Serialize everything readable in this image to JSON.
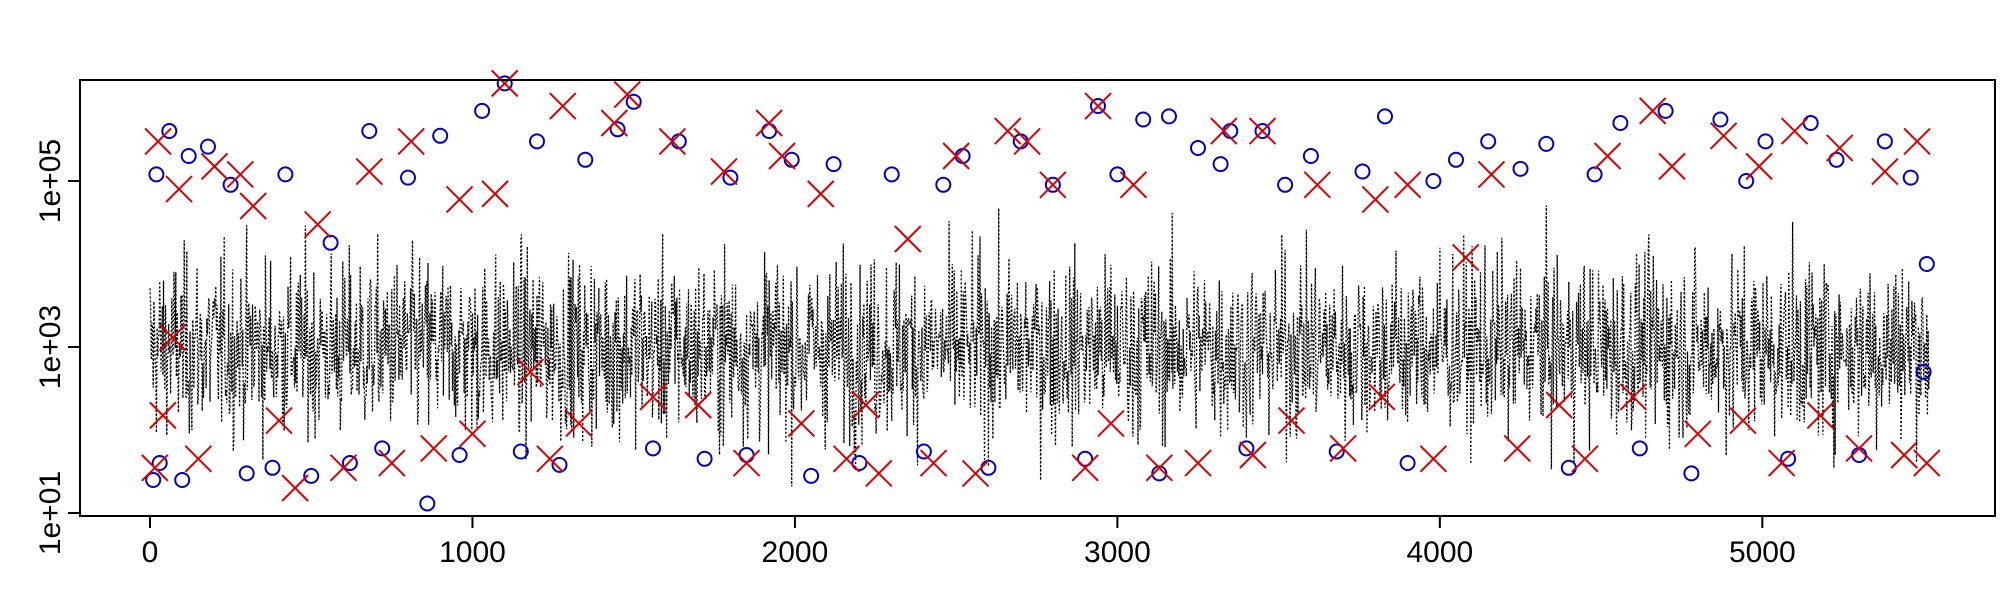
{
  "chart_data": {
    "type": "line",
    "title": "",
    "xlabel": "",
    "ylabel": "",
    "x_range": [
      0,
      5520
    ],
    "y_scale": "log10",
    "ylim": [
      10,
      1000000
    ],
    "x_ticks": [
      {
        "value": 0,
        "label": "0"
      },
      {
        "value": 1000,
        "label": "1000"
      },
      {
        "value": 2000,
        "label": "2000"
      },
      {
        "value": 3000,
        "label": "3000"
      },
      {
        "value": 4000,
        "label": "4000"
      },
      {
        "value": 5000,
        "label": "5000"
      }
    ],
    "y_ticks": [
      {
        "value": 10,
        "label": "1e+01"
      },
      {
        "value": 1000,
        "label": "1e+03"
      },
      {
        "value": 100000,
        "label": "1e+05"
      }
    ],
    "grid": false,
    "legend": "none",
    "series": [
      {
        "kind": "dotted-line",
        "color": "#000000",
        "n_points": 5520,
        "typical_range": [
          100,
          10000
        ],
        "extreme_range": [
          8,
          300000
        ]
      },
      {
        "kind": "circle-markers",
        "color": "#0000CC",
        "points": [
          [
            10,
            25
          ],
          [
            20,
            120000
          ],
          [
            30,
            40
          ],
          [
            60,
            400000
          ],
          [
            100,
            25
          ],
          [
            120,
            200000
          ],
          [
            180,
            260000
          ],
          [
            250,
            90000
          ],
          [
            300,
            30
          ],
          [
            380,
            35
          ],
          [
            420,
            120000
          ],
          [
            500,
            28
          ],
          [
            560,
            18000
          ],
          [
            620,
            40
          ],
          [
            680,
            400000
          ],
          [
            720,
            60
          ],
          [
            800,
            110000
          ],
          [
            860,
            13
          ],
          [
            900,
            350000
          ],
          [
            960,
            50
          ],
          [
            1030,
            700000
          ],
          [
            1100,
            1500000
          ],
          [
            1150,
            55
          ],
          [
            1200,
            300000
          ],
          [
            1270,
            38
          ],
          [
            1350,
            180000
          ],
          [
            1450,
            420000
          ],
          [
            1500,
            900000
          ],
          [
            1560,
            60
          ],
          [
            1640,
            300000
          ],
          [
            1720,
            45
          ],
          [
            1800,
            110000
          ],
          [
            1850,
            50
          ],
          [
            1920,
            400000
          ],
          [
            1990,
            180000
          ],
          [
            2050,
            28
          ],
          [
            2120,
            160000
          ],
          [
            2200,
            40
          ],
          [
            2300,
            120000
          ],
          [
            2400,
            55
          ],
          [
            2460,
            90000
          ],
          [
            2520,
            200000
          ],
          [
            2600,
            35
          ],
          [
            2700,
            300000
          ],
          [
            2800,
            90000
          ],
          [
            2900,
            45
          ],
          [
            2940,
            800000
          ],
          [
            3000,
            120000
          ],
          [
            3080,
            550000
          ],
          [
            3130,
            30
          ],
          [
            3160,
            600000
          ],
          [
            3250,
            250000
          ],
          [
            3320,
            160000
          ],
          [
            3350,
            400000
          ],
          [
            3400,
            60
          ],
          [
            3450,
            400000
          ],
          [
            3520,
            90000
          ],
          [
            3600,
            200000
          ],
          [
            3680,
            55
          ],
          [
            3760,
            130000
          ],
          [
            3830,
            600000
          ],
          [
            3900,
            40
          ],
          [
            3980,
            100000
          ],
          [
            4050,
            180000
          ],
          [
            4150,
            300000
          ],
          [
            4250,
            140000
          ],
          [
            4330,
            280000
          ],
          [
            4400,
            35
          ],
          [
            4480,
            120000
          ],
          [
            4560,
            500000
          ],
          [
            4620,
            60
          ],
          [
            4700,
            700000
          ],
          [
            4780,
            30
          ],
          [
            4870,
            550000
          ],
          [
            4950,
            100000
          ],
          [
            5010,
            300000
          ],
          [
            5080,
            45
          ],
          [
            5150,
            500000
          ],
          [
            5230,
            180000
          ],
          [
            5300,
            50
          ],
          [
            5380,
            300000
          ],
          [
            5460,
            110000
          ],
          [
            5500,
            500
          ],
          [
            5510,
            10000
          ]
        ]
      },
      {
        "kind": "x-markers",
        "color": "#DD0000",
        "points": [
          [
            15,
            35
          ],
          [
            25,
            300000
          ],
          [
            40,
            150
          ],
          [
            70,
            1300
          ],
          [
            90,
            80000
          ],
          [
            150,
            45
          ],
          [
            200,
            150000
          ],
          [
            280,
            120000
          ],
          [
            320,
            50000
          ],
          [
            400,
            130
          ],
          [
            450,
            20
          ],
          [
            520,
            30000
          ],
          [
            600,
            35
          ],
          [
            680,
            130000
          ],
          [
            750,
            40
          ],
          [
            810,
            300000
          ],
          [
            880,
            60
          ],
          [
            960,
            60000
          ],
          [
            1000,
            90
          ],
          [
            1070,
            70000
          ],
          [
            1100,
            1500000
          ],
          [
            1180,
            500
          ],
          [
            1240,
            45
          ],
          [
            1280,
            800000
          ],
          [
            1330,
            120
          ],
          [
            1440,
            500000
          ],
          [
            1480,
            1100000
          ],
          [
            1560,
            250
          ],
          [
            1620,
            300000
          ],
          [
            1700,
            200
          ],
          [
            1780,
            130000
          ],
          [
            1850,
            40
          ],
          [
            1920,
            500000
          ],
          [
            1960,
            200000
          ],
          [
            2020,
            120
          ],
          [
            2080,
            70000
          ],
          [
            2160,
            45
          ],
          [
            2220,
            200
          ],
          [
            2260,
            30
          ],
          [
            2350,
            20000
          ],
          [
            2430,
            40
          ],
          [
            2500,
            200000
          ],
          [
            2560,
            30
          ],
          [
            2660,
            400000
          ],
          [
            2720,
            300000
          ],
          [
            2800,
            90000
          ],
          [
            2900,
            35
          ],
          [
            2940,
            800000
          ],
          [
            2980,
            120
          ],
          [
            3050,
            90000
          ],
          [
            3130,
            35
          ],
          [
            3250,
            40
          ],
          [
            3330,
            400000
          ],
          [
            3420,
            50
          ],
          [
            3450,
            400000
          ],
          [
            3540,
            130
          ],
          [
            3620,
            90000
          ],
          [
            3700,
            60
          ],
          [
            3800,
            60000
          ],
          [
            3820,
            250
          ],
          [
            3900,
            90000
          ],
          [
            3980,
            45
          ],
          [
            4080,
            12000
          ],
          [
            4160,
            120000
          ],
          [
            4240,
            60
          ],
          [
            4370,
            200
          ],
          [
            4450,
            45
          ],
          [
            4520,
            200000
          ],
          [
            4600,
            250
          ],
          [
            4660,
            700000
          ],
          [
            4720,
            150000
          ],
          [
            4800,
            90
          ],
          [
            4880,
            350000
          ],
          [
            4940,
            130
          ],
          [
            4990,
            150000
          ],
          [
            5060,
            40
          ],
          [
            5100,
            400000
          ],
          [
            5180,
            150
          ],
          [
            5240,
            250000
          ],
          [
            5300,
            60
          ],
          [
            5380,
            130000
          ],
          [
            5440,
            50
          ],
          [
            5480,
            300000
          ],
          [
            5510,
            40
          ]
        ]
      }
    ]
  }
}
